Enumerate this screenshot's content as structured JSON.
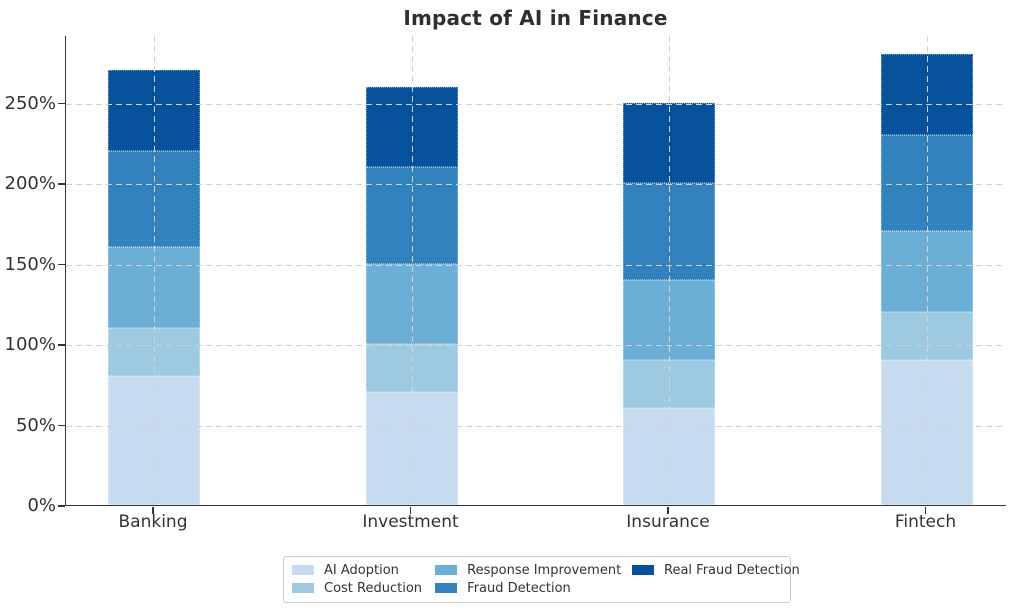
{
  "title": "Impact of AI in Finance",
  "chart_data": {
    "type": "bar",
    "stacked": true,
    "title": "Impact of AI in Finance",
    "categories": [
      "Banking",
      "Investment",
      "Insurance",
      "Fintech"
    ],
    "series": [
      {
        "name": "AI Adoption",
        "color": "#c6dbef",
        "values": [
          80,
          70,
          60,
          90
        ]
      },
      {
        "name": "Cost Reduction",
        "color": "#9ecae1",
        "values": [
          30,
          30,
          30,
          30
        ]
      },
      {
        "name": "Response Improvement",
        "color": "#6baed6",
        "values": [
          50,
          50,
          50,
          50
        ]
      },
      {
        "name": "Fraud Detection",
        "color": "#3182bd",
        "values": [
          60,
          60,
          60,
          60
        ]
      },
      {
        "name": "Real Fraud Detection",
        "color": "#08519c",
        "values": [
          50,
          50,
          50,
          50
        ]
      }
    ],
    "stack_totals": [
      270,
      260,
      250,
      280
    ],
    "xlabel": "",
    "ylabel": "",
    "y_ticks": [
      "0%",
      "50%",
      "100%",
      "150%",
      "200%",
      "250%"
    ],
    "y_tick_values": [
      0,
      50,
      100,
      150,
      200,
      250
    ],
    "ylim": [
      0,
      292
    ],
    "grid": "dashed-both-axes",
    "legend_position": "bottom-center",
    "legend_columns": 3,
    "unit": "%"
  },
  "colors": {
    "background": "#ffffff",
    "spine": "#343434",
    "grid": "#d2d2d2",
    "text": "#333333",
    "legend_border": "#cccccc"
  }
}
